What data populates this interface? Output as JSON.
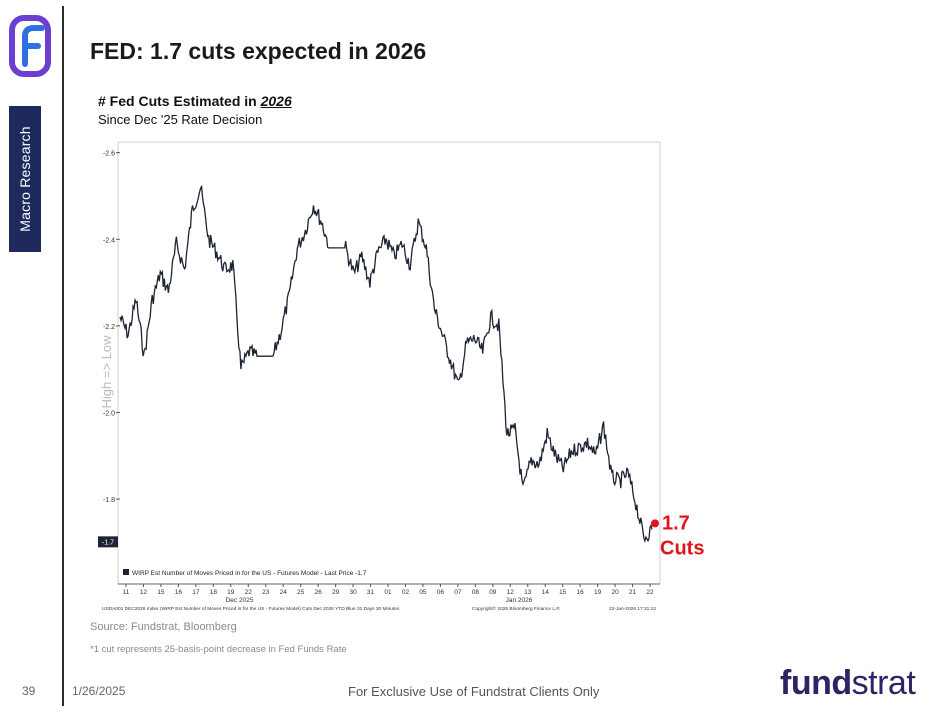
{
  "slide": {
    "title": "FED: 1.7 cuts expected in 2026",
    "side_tab": "Macro Research",
    "source": "Source: Fundstrat, Bloomberg",
    "footnote": "*1 cut represents 25-basis-point decrease in Fed Funds Rate",
    "page_number": "39",
    "date": "1/26/2025",
    "footer": "For Exclusive Use of Fundstrat Clients Only",
    "brand_bold": "fund",
    "brand_light": "strat",
    "colors": {
      "navy": "#1f2a5c",
      "brand": "#2c2466",
      "accent_red": "#e0141b",
      "logo_purple": "#6b3fd0",
      "logo_blue": "#2f6fe0"
    }
  },
  "chart_data": {
    "type": "line",
    "title_prefix": "# Fed Cuts Estimated in ",
    "title_emph": "2026",
    "subtitle": "Since Dec '25 Rate Decision",
    "ylabel": "High => Low",
    "ylim": [
      -1.65,
      -2.62
    ],
    "yticks": [
      -2.6,
      -2.4,
      -2.2,
      -2.0,
      -1.8
    ],
    "last_value_label": "-1.7",
    "last_value": -1.7,
    "annotation": "1.7",
    "annotation_sub": "Cuts",
    "legend": "WIRP Est Number of Moves Priced in for the US - Futures Model - Last Price -1.7",
    "x_tick_labels": [
      "11",
      "12",
      "15",
      "16",
      "17",
      "18",
      "19",
      "22",
      "23",
      "24",
      "25",
      "26",
      "29",
      "30",
      "31",
      "01",
      "02",
      "05",
      "06",
      "07",
      "08",
      "09",
      "12",
      "13",
      "14",
      "15",
      "16",
      "19",
      "20",
      "21",
      "22"
    ],
    "x_month_labels": [
      "Dec 2025",
      "Jan 2026"
    ],
    "source_line_left": "USDA001 DEC2026 Index (WIRP Est Number of Moves Priced in for the US - Futures Model) Cuts Dec 2026 YTD Blue 31 Days 30 Minutes",
    "source_line_mid": "Copyright© 2026 Bloomberg Finance L.P.",
    "source_line_right": "22-Jan-2026 17:31:12",
    "x": [
      0,
      0.5,
      1,
      1.5,
      2,
      2.5,
      3,
      3.5,
      4,
      4.5,
      5,
      5.5,
      6,
      6.5,
      7,
      7.5,
      8,
      8.5,
      9,
      9.5,
      10,
      10.5,
      11,
      11.5,
      12,
      12.5,
      13,
      13.5,
      14,
      14.5,
      15,
      15.5,
      16,
      16.5,
      17,
      17.5,
      18,
      18.5,
      19,
      19.5,
      20,
      20.5,
      21,
      21.5,
      22,
      22.5,
      23,
      23.5,
      24,
      24.5,
      25,
      25.5,
      26,
      26.5,
      27,
      27.5,
      28,
      28.5,
      29,
      29.5,
      30,
      30.5,
      31,
      31.5,
      32,
      32.5,
      33
    ],
    "values": [
      -2.22,
      -2.18,
      -2.26,
      -2.13,
      -2.26,
      -2.32,
      -2.28,
      -2.39,
      -2.33,
      -2.47,
      -2.52,
      -2.4,
      -2.37,
      -2.33,
      -2.34,
      -2.1,
      -2.14,
      -2.13,
      -2.13,
      -2.13,
      -2.19,
      -2.27,
      -2.38,
      -2.42,
      -2.48,
      -2.44,
      -2.38,
      -2.38,
      -2.38,
      -2.32,
      -2.36,
      -2.3,
      -2.37,
      -2.4,
      -2.36,
      -2.39,
      -2.34,
      -2.44,
      -2.38,
      -2.24,
      -2.18,
      -2.12,
      -2.06,
      -2.16,
      -2.17,
      -2.14,
      -2.22,
      -2.2,
      -1.95,
      -1.96,
      -1.82,
      -1.89,
      -1.88,
      -1.95,
      -1.9,
      -1.87,
      -1.91,
      -1.92,
      -1.93,
      -1.9,
      -1.97,
      -1.85,
      -1.84,
      -1.86,
      -1.79,
      -1.71,
      -1.73
    ]
  }
}
